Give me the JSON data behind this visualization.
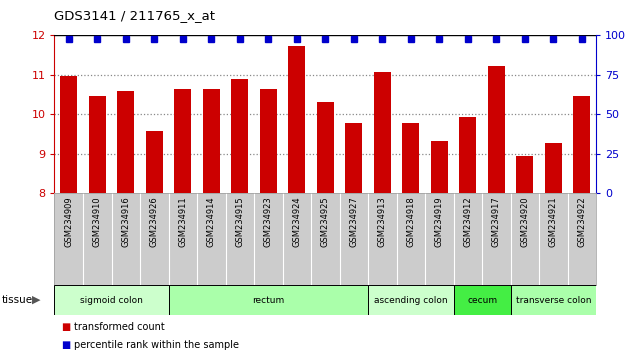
{
  "title": "GDS3141 / 211765_x_at",
  "samples": [
    "GSM234909",
    "GSM234910",
    "GSM234916",
    "GSM234926",
    "GSM234911",
    "GSM234914",
    "GSM234915",
    "GSM234923",
    "GSM234924",
    "GSM234925",
    "GSM234927",
    "GSM234913",
    "GSM234918",
    "GSM234919",
    "GSM234912",
    "GSM234917",
    "GSM234920",
    "GSM234921",
    "GSM234922"
  ],
  "bar_values": [
    10.98,
    10.45,
    10.6,
    9.57,
    10.65,
    10.65,
    10.9,
    10.65,
    11.73,
    10.3,
    9.77,
    11.08,
    9.77,
    9.32,
    9.93,
    11.23,
    8.93,
    9.27,
    10.45
  ],
  "percentile_values": [
    100,
    100,
    100,
    100,
    100,
    100,
    100,
    100,
    100,
    100,
    100,
    100,
    100,
    100,
    100,
    100,
    100,
    100,
    100
  ],
  "ylim_left": [
    8,
    12
  ],
  "ylim_right": [
    0,
    100
  ],
  "yticks_left": [
    8,
    9,
    10,
    11,
    12
  ],
  "yticks_right": [
    0,
    25,
    50,
    75,
    100
  ],
  "bar_color": "#cc0000",
  "percentile_color": "#0000cc",
  "tissue_groups": [
    {
      "label": "sigmoid colon",
      "start": 0,
      "end": 4,
      "color": "#ccffcc"
    },
    {
      "label": "rectum",
      "start": 4,
      "end": 11,
      "color": "#aaffaa"
    },
    {
      "label": "ascending colon",
      "start": 11,
      "end": 14,
      "color": "#ccffcc"
    },
    {
      "label": "cecum",
      "start": 14,
      "end": 16,
      "color": "#44ee44"
    },
    {
      "label": "transverse colon",
      "start": 16,
      "end": 19,
      "color": "#aaffaa"
    }
  ],
  "legend_bar_label": "transformed count",
  "legend_pct_label": "percentile rank within the sample",
  "background_color": "#ffffff",
  "plot_bg_color": "#ffffff",
  "tick_label_area_color": "#cccccc",
  "dotted_line_color": "#888888",
  "left_spine_color": "#cc0000",
  "right_spine_color": "#0000cc"
}
